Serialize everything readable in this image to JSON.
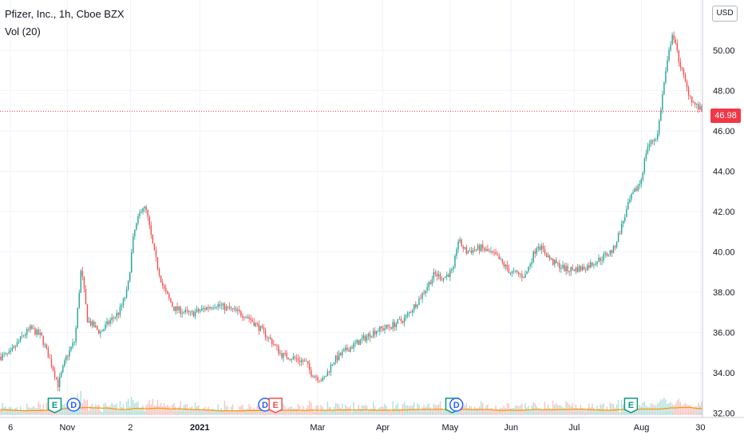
{
  "legend": {
    "title": "Pfizer, Inc., 1h, Cboe BZX",
    "indicator": "Vol (20)"
  },
  "currency_label": "USD",
  "last_price_label": "46.98",
  "colors": {
    "up": "#26a69a",
    "down": "#ef5350",
    "grid": "#f0f3fa",
    "axis_text": "#131722",
    "last_price": "#f23645",
    "volume_ma": "#ff9800",
    "earnings": "#089981",
    "dividend": "#2962ff"
  },
  "event_markers": [
    {
      "label": "E",
      "type": "earnings",
      "date": "2020-10-27"
    },
    {
      "label": "D",
      "type": "dividend",
      "date": "2020-11-05"
    },
    {
      "label": "D",
      "type": "dividend",
      "date": "2021-02-04"
    },
    {
      "label": "E",
      "type": "earnings-red",
      "date": "2021-02-09"
    },
    {
      "label": "E",
      "type": "earnings",
      "date": "2021-05-04"
    },
    {
      "label": "D",
      "type": "dividend",
      "date": "2021-05-06"
    },
    {
      "label": "E",
      "type": "earnings",
      "date": "2021-07-28"
    }
  ],
  "chart_data": {
    "type": "candlestick",
    "title": "Pfizer, Inc., 1h, Cboe BZX",
    "indicator": "Vol (20)",
    "x_ticks": [
      "6",
      "Nov",
      "2",
      "2021",
      "Mar",
      "Apr",
      "May",
      "Jun",
      "Jul",
      "Aug",
      "30"
    ],
    "x_tick_dates": [
      "2020-10-06",
      "2020-11-02",
      "2020-12-02",
      "2021-01-04",
      "2021-03-01",
      "2021-04-01",
      "2021-05-03",
      "2021-06-01",
      "2021-07-01",
      "2021-08-02",
      "2021-08-30"
    ],
    "y_ticks": [
      "32.00",
      "34.00",
      "36.00",
      "38.00",
      "40.00",
      "42.00",
      "44.00",
      "46.00",
      "48.00",
      "50.00"
    ],
    "ylim": [
      31.9,
      52.5
    ],
    "x_range": [
      "2020-10-01",
      "2021-08-31"
    ],
    "last_price": 46.98,
    "price_path": [
      [
        "2020-10-01",
        34.8
      ],
      [
        "2020-10-06",
        34.9
      ],
      [
        "2020-10-12",
        35.8
      ],
      [
        "2020-10-16",
        36.2
      ],
      [
        "2020-10-21",
        35.8
      ],
      [
        "2020-10-26",
        34.4
      ],
      [
        "2020-10-29",
        33.4
      ],
      [
        "2020-11-02",
        34.8
      ],
      [
        "2020-11-06",
        35.6
      ],
      [
        "2020-11-09",
        39.2
      ],
      [
        "2020-11-12",
        36.6
      ],
      [
        "2020-11-18",
        36.0
      ],
      [
        "2020-11-23",
        36.6
      ],
      [
        "2020-11-27",
        37.0
      ],
      [
        "2020-12-01",
        38.1
      ],
      [
        "2020-12-04",
        40.9
      ],
      [
        "2020-12-08",
        42.3
      ],
      [
        "2020-12-10",
        42.0
      ],
      [
        "2020-12-14",
        39.8
      ],
      [
        "2020-12-18",
        38.2
      ],
      [
        "2020-12-23",
        37.2
      ],
      [
        "2020-12-31",
        36.9
      ],
      [
        "2021-01-07",
        37.2
      ],
      [
        "2021-01-12",
        37.4
      ],
      [
        "2021-01-20",
        37.1
      ],
      [
        "2021-01-27",
        36.8
      ],
      [
        "2021-02-02",
        36.2
      ],
      [
        "2021-02-08",
        35.5
      ],
      [
        "2021-02-12",
        34.9
      ],
      [
        "2021-02-19",
        34.7
      ],
      [
        "2021-02-24",
        34.5
      ],
      [
        "2021-02-26",
        34.0
      ],
      [
        "2021-03-04",
        33.6
      ],
      [
        "2021-03-09",
        34.6
      ],
      [
        "2021-03-16",
        35.2
      ],
      [
        "2021-03-22",
        35.6
      ],
      [
        "2021-03-29",
        36.1
      ],
      [
        "2021-04-05",
        36.3
      ],
      [
        "2021-04-12",
        36.7
      ],
      [
        "2021-04-19",
        37.7
      ],
      [
        "2021-04-26",
        38.9
      ],
      [
        "2021-04-30",
        38.7
      ],
      [
        "2021-05-05",
        39.1
      ],
      [
        "2021-05-07",
        40.6
      ],
      [
        "2021-05-11",
        40.0
      ],
      [
        "2021-05-18",
        40.2
      ],
      [
        "2021-05-25",
        39.8
      ],
      [
        "2021-06-01",
        39.0
      ],
      [
        "2021-06-08",
        38.8
      ],
      [
        "2021-06-14",
        40.4
      ],
      [
        "2021-06-21",
        39.5
      ],
      [
        "2021-06-28",
        39.1
      ],
      [
        "2021-07-06",
        39.2
      ],
      [
        "2021-07-13",
        39.6
      ],
      [
        "2021-07-20",
        40.1
      ],
      [
        "2021-07-23",
        41.0
      ],
      [
        "2021-07-28",
        42.6
      ],
      [
        "2021-08-02",
        43.5
      ],
      [
        "2021-08-05",
        45.2
      ],
      [
        "2021-08-10",
        45.8
      ],
      [
        "2021-08-13",
        48.3
      ],
      [
        "2021-08-17",
        50.9
      ],
      [
        "2021-08-20",
        49.6
      ],
      [
        "2021-08-24",
        48.1
      ],
      [
        "2021-08-27",
        47.4
      ],
      [
        "2021-08-31",
        46.98
      ]
    ]
  }
}
